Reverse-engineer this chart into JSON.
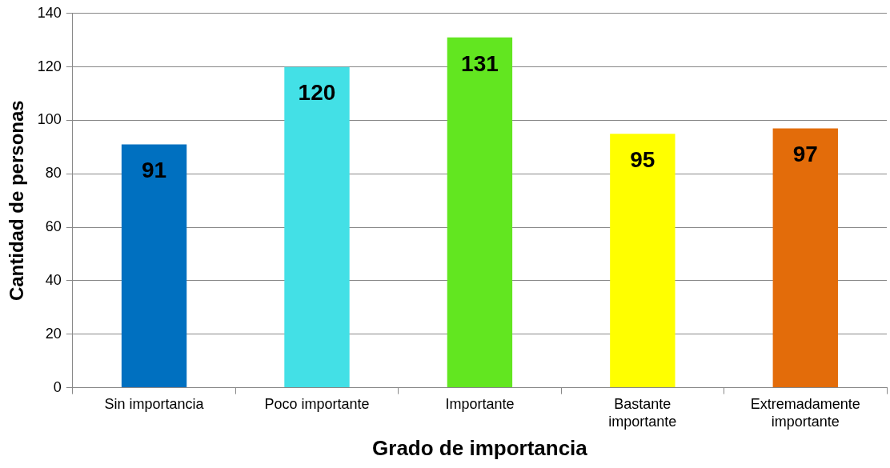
{
  "chart_data": {
    "type": "bar",
    "xlabel": "Grado de importancia",
    "ylabel": "Cantidad de personas",
    "categories": [
      "Sin importancia",
      "Poco importante",
      "Importante",
      "Bastante importante",
      "Extremadamente importante"
    ],
    "values": [
      91,
      120,
      131,
      95,
      97
    ],
    "colors": [
      "#0070c0",
      "#43e0e6",
      "#62e620",
      "#ffff00",
      "#e36c0a"
    ],
    "ylim": [
      0,
      140
    ],
    "yticks": [
      0,
      20,
      40,
      60,
      80,
      100,
      120,
      140
    ],
    "grid": "y",
    "legend": false,
    "data_labels": true
  }
}
